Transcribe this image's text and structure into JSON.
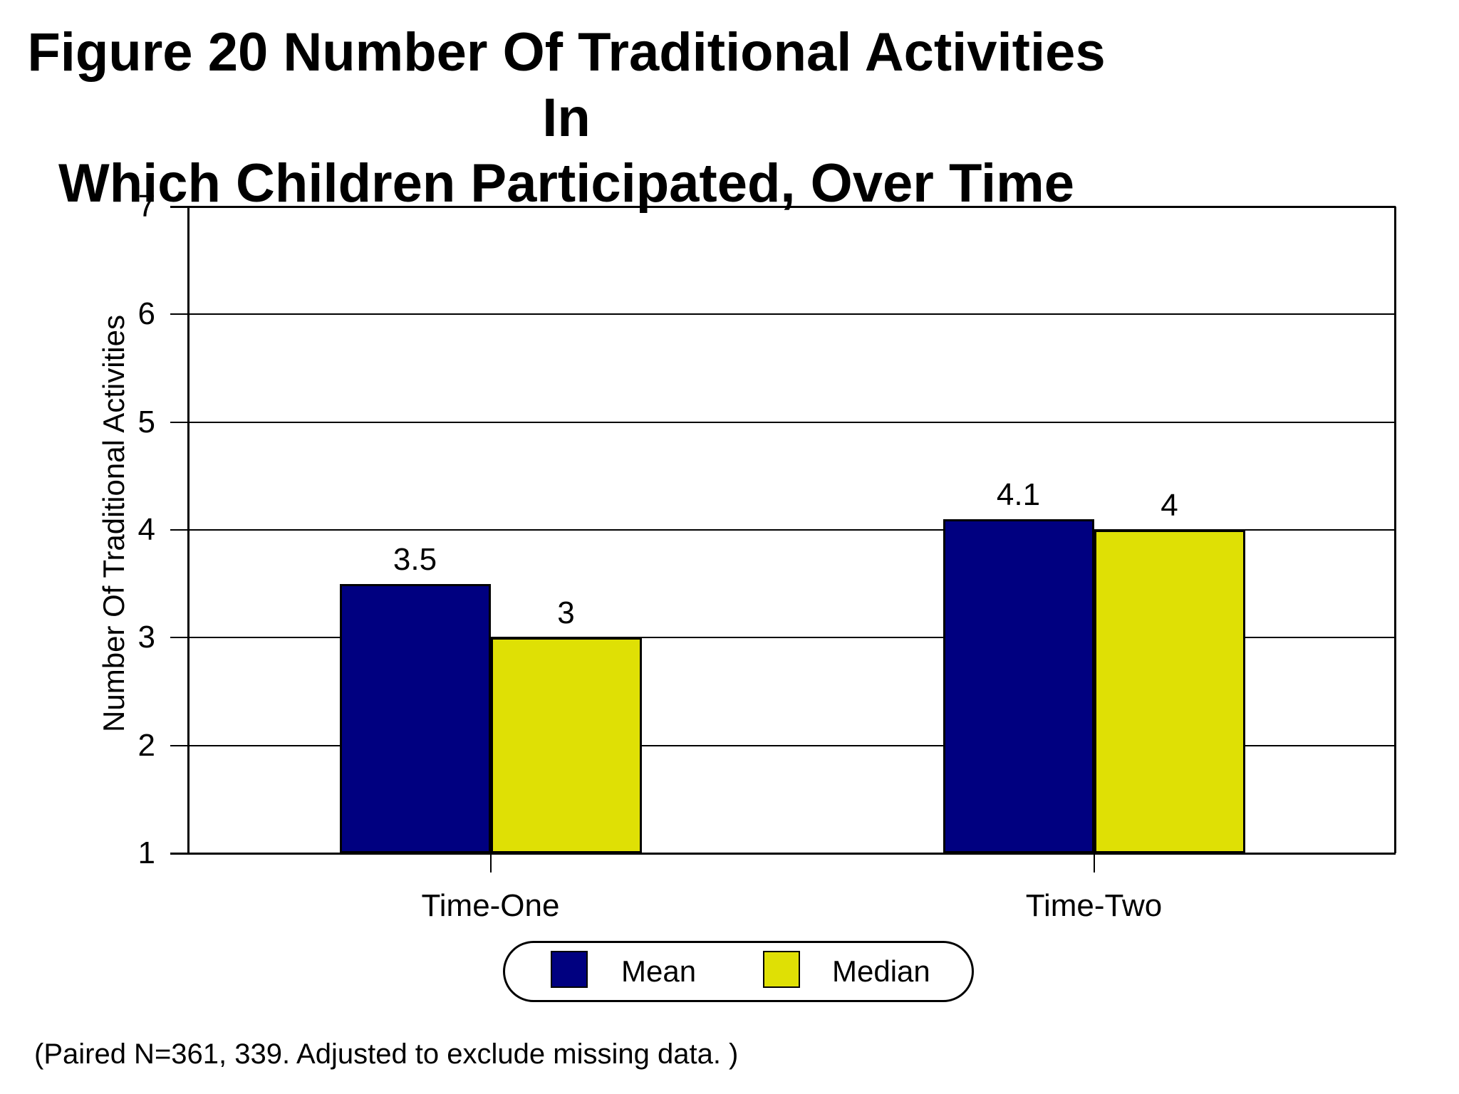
{
  "title": {
    "line1": "Figure 20  Number Of Traditional Activities In",
    "line2": "Which Children Participated, Over Time"
  },
  "footnote": "(Paired N=361, 339. Adjusted to exclude missing data. )",
  "colors": {
    "mean": "#000080",
    "median": "#dfe005",
    "axis": "#000000",
    "background": "#ffffff"
  },
  "chart_data": {
    "type": "bar",
    "title": "Figure 20  Number Of Traditional Activities In Which Children Participated, Over Time",
    "categories": [
      "Time-One",
      "Time-Two"
    ],
    "series": [
      {
        "name": "Mean",
        "color": "#000080",
        "values": [
          3.5,
          4.1
        ],
        "labels": [
          "3.5",
          "4.1"
        ]
      },
      {
        "name": "Median",
        "color": "#dfe005",
        "values": [
          3,
          4
        ],
        "labels": [
          "3",
          "4"
        ]
      }
    ],
    "xlabel": "",
    "ylabel": "Number Of Traditional Activities",
    "ylim": [
      1,
      7
    ],
    "yticks": [
      1,
      2,
      3,
      4,
      5,
      6,
      7
    ],
    "ytick_labels": [
      "1",
      "2",
      "3",
      "4",
      "5",
      "6",
      "7"
    ],
    "grid": true,
    "legend_position": "bottom"
  }
}
